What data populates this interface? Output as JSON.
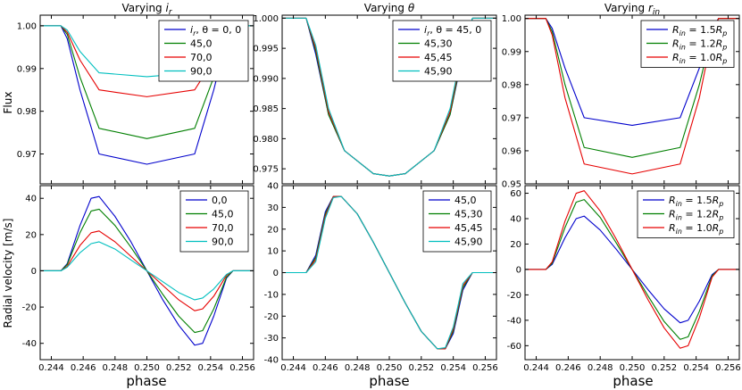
{
  "figure": {
    "ylabel_top": "Flux",
    "ylabel_bottom": "Radial velocity [m/s]",
    "xlabel": "phase"
  },
  "colors": [
    "#0000cc",
    "#007f00",
    "#e60000",
    "#00bfbf"
  ],
  "chart_data": [
    {
      "type": "line",
      "title": "Varying $i_r$",
      "title_text": "Varying ",
      "title_sym": "i",
      "title_sub": "r",
      "ylabel": "Flux",
      "xlabel": "",
      "xlim": [
        0.2433,
        0.2567
      ],
      "ylim": [
        0.963,
        1.0025
      ],
      "xticks": [
        0.244,
        0.246,
        0.248,
        0.25,
        0.252,
        0.254,
        0.256
      ],
      "yticks": [
        0.97,
        0.98,
        0.99,
        1.0
      ],
      "xtick_labels_shown": false,
      "legend": "top-right",
      "x": [
        0.2433,
        0.2446,
        0.245,
        0.2458,
        0.247,
        0.25,
        0.253,
        0.2542,
        0.255,
        0.2554,
        0.2567
      ],
      "series": [
        {
          "name": "$i_r,\\theta=0,0$",
          "label": "i_r, θ = 0, 0",
          "values": [
            1.0,
            1.0,
            0.997,
            0.985,
            0.97,
            0.9676,
            0.97,
            0.985,
            0.997,
            1.0,
            1.0
          ]
        },
        {
          "name": "45,0",
          "values": [
            1.0,
            1.0,
            0.998,
            0.988,
            0.976,
            0.9736,
            0.976,
            0.988,
            0.998,
            1.0,
            1.0
          ]
        },
        {
          "name": "70,0",
          "values": [
            1.0,
            1.0,
            0.9985,
            0.992,
            0.985,
            0.9834,
            0.985,
            0.992,
            0.9985,
            1.0,
            1.0
          ]
        },
        {
          "name": "90,0",
          "values": [
            1.0,
            1.0,
            0.999,
            0.994,
            0.989,
            0.9881,
            0.989,
            0.994,
            0.999,
            1.0,
            1.0
          ]
        }
      ]
    },
    {
      "type": "line",
      "title": "Varying $\\theta$",
      "title_text": "Varying ",
      "title_sym": "θ",
      "title_sub": "",
      "ylabel": "",
      "xlabel": "",
      "xlim": [
        0.2433,
        0.2567
      ],
      "ylim": [
        0.9725,
        1.0005
      ],
      "xticks": [
        0.244,
        0.246,
        0.248,
        0.25,
        0.252,
        0.254,
        0.256
      ],
      "yticks": [
        0.975,
        0.98,
        0.985,
        0.99,
        0.995,
        1.0
      ],
      "xtick_labels_shown": false,
      "legend": "top-right",
      "x": [
        0.2433,
        0.2448,
        0.2454,
        0.2462,
        0.2472,
        0.249,
        0.25,
        0.251,
        0.2528,
        0.2538,
        0.2546,
        0.2552,
        0.2567
      ],
      "series": [
        {
          "name": "$i_r,\\theta=45,0$",
          "label": "i_r, θ = 45, 0",
          "values": [
            1.0,
            1.0,
            0.994,
            0.984,
            0.978,
            0.9742,
            0.9738,
            0.9742,
            0.978,
            0.984,
            0.994,
            1.0,
            1.0
          ]
        },
        {
          "name": "45,30",
          "values": [
            1.0,
            1.0,
            0.9945,
            0.984,
            0.978,
            0.9742,
            0.9738,
            0.9742,
            0.978,
            0.984,
            0.9945,
            1.0,
            1.0
          ]
        },
        {
          "name": "45,45",
          "values": [
            1.0,
            1.0,
            0.995,
            0.9845,
            0.978,
            0.9742,
            0.9738,
            0.9742,
            0.978,
            0.9845,
            0.995,
            1.0,
            1.0
          ]
        },
        {
          "name": "45,90",
          "values": [
            1.0,
            1.0,
            0.9955,
            0.985,
            0.978,
            0.9742,
            0.9738,
            0.9742,
            0.978,
            0.985,
            0.9955,
            1.0,
            1.0
          ]
        }
      ]
    },
    {
      "type": "line",
      "title": "Varying $r_{in}$",
      "title_text": "Varying ",
      "title_sym": "r",
      "title_sub": "in",
      "ylabel": "",
      "xlabel": "",
      "xlim": [
        0.2433,
        0.2567
      ],
      "ylim": [
        0.95,
        1.001
      ],
      "xticks": [
        0.244,
        0.246,
        0.248,
        0.25,
        0.252,
        0.254,
        0.256
      ],
      "yticks": [
        0.95,
        0.96,
        0.97,
        0.98,
        0.99,
        1.0
      ],
      "xtick_labels_shown": false,
      "legend": "top-right",
      "x": [
        0.2433,
        0.2446,
        0.245,
        0.2458,
        0.247,
        0.25,
        0.253,
        0.2542,
        0.255,
        0.2554,
        0.2567
      ],
      "series": [
        {
          "name": "$R_{in}=1.5R_p$",
          "label": "R_in = 1.5R_p",
          "values": [
            1.0,
            1.0,
            0.997,
            0.985,
            0.97,
            0.9677,
            0.97,
            0.985,
            0.997,
            1.0,
            1.0
          ]
        },
        {
          "name": "$R_{in}=1.2R_p$",
          "label": "R_in = 1.2R_p",
          "values": [
            1.0,
            1.0,
            0.996,
            0.98,
            0.961,
            0.958,
            0.961,
            0.98,
            0.996,
            1.0,
            1.0
          ]
        },
        {
          "name": "$R_{in}=1.0R_p$",
          "label": "R_in = 1.0R_p",
          "values": [
            1.0,
            1.0,
            0.995,
            0.976,
            0.956,
            0.953,
            0.956,
            0.976,
            0.995,
            1.0,
            1.0
          ]
        }
      ]
    },
    {
      "type": "line",
      "title": "",
      "ylabel": "Radial velocity [m/s]",
      "xlabel": "phase",
      "xlim": [
        0.2433,
        0.2567
      ],
      "ylim": [
        -49,
        47
      ],
      "xticks": [
        0.244,
        0.246,
        0.248,
        0.25,
        0.252,
        0.254,
        0.256
      ],
      "yticks": [
        -40,
        -20,
        0,
        20,
        40
      ],
      "xtick_labels_shown": true,
      "legend": "top-right",
      "x": [
        0.2433,
        0.2446,
        0.245,
        0.2458,
        0.2465,
        0.247,
        0.248,
        0.249,
        0.25,
        0.251,
        0.252,
        0.253,
        0.2535,
        0.2542,
        0.255,
        0.2554,
        0.2567
      ],
      "series": [
        {
          "name": "0,0",
          "values": [
            0,
            0,
            4,
            25,
            40,
            41,
            30,
            16,
            0,
            -16,
            -30,
            -41,
            -40,
            -25,
            -4,
            0,
            0
          ]
        },
        {
          "name": "45,0",
          "values": [
            0,
            0,
            3.5,
            21,
            33,
            34,
            25,
            13,
            0,
            -13,
            -25,
            -34,
            -33,
            -21,
            -3.5,
            0,
            0
          ]
        },
        {
          "name": "70,0",
          "values": [
            0,
            0,
            2.5,
            14,
            21,
            22,
            16,
            8,
            0,
            -8,
            -16,
            -22,
            -21,
            -14,
            -2.5,
            0,
            0
          ]
        },
        {
          "name": "90,0",
          "values": [
            0,
            0,
            2,
            10,
            15,
            16,
            12,
            6,
            0,
            -6,
            -12,
            -16,
            -15,
            -10,
            -2,
            0,
            0
          ]
        }
      ]
    },
    {
      "type": "line",
      "title": "",
      "ylabel": "",
      "xlabel": "phase",
      "xlim": [
        0.2433,
        0.2567
      ],
      "ylim": [
        -40,
        40
      ],
      "xticks": [
        0.244,
        0.246,
        0.248,
        0.25,
        0.252,
        0.254,
        0.256
      ],
      "yticks": [
        -40,
        -30,
        -20,
        -10,
        0,
        10,
        20,
        30,
        40
      ],
      "xtick_labels_shown": true,
      "legend": "top-right",
      "x": [
        0.2433,
        0.2448,
        0.2454,
        0.246,
        0.2465,
        0.247,
        0.248,
        0.249,
        0.25,
        0.251,
        0.252,
        0.253,
        0.2535,
        0.254,
        0.2546,
        0.2552,
        0.2567
      ],
      "series": [
        {
          "name": "45,0",
          "values": [
            0,
            0,
            8,
            28,
            35,
            35,
            27,
            14,
            0,
            -14,
            -27,
            -35,
            -35,
            -28,
            -8,
            0,
            0
          ]
        },
        {
          "name": "45,30",
          "values": [
            0,
            0,
            7,
            27,
            35,
            35,
            27,
            14,
            0,
            -14,
            -27,
            -35,
            -35,
            -27,
            -7,
            0,
            0
          ]
        },
        {
          "name": "45,45",
          "values": [
            0,
            0,
            6,
            26,
            35,
            35,
            27,
            14,
            0,
            -14,
            -27,
            -35,
            -35,
            -26,
            -6,
            0,
            0
          ]
        },
        {
          "name": "45,90",
          "values": [
            0,
            0,
            5,
            25,
            34.5,
            35,
            27,
            14,
            0,
            -14,
            -27,
            -35,
            -34.5,
            -25,
            -5,
            0,
            0
          ]
        }
      ]
    },
    {
      "type": "line",
      "title": "",
      "ylabel": "",
      "xlabel": "phase",
      "xlim": [
        0.2433,
        0.2567
      ],
      "ylim": [
        -71,
        66
      ],
      "xticks": [
        0.244,
        0.246,
        0.248,
        0.25,
        0.252,
        0.254,
        0.256
      ],
      "yticks": [
        -60,
        -40,
        -20,
        0,
        20,
        40,
        60
      ],
      "xtick_labels_shown": true,
      "legend": "top-right",
      "x": [
        0.2433,
        0.2446,
        0.245,
        0.2458,
        0.2465,
        0.247,
        0.248,
        0.249,
        0.25,
        0.251,
        0.252,
        0.253,
        0.2535,
        0.2542,
        0.255,
        0.2554,
        0.2567
      ],
      "series": [
        {
          "name": "$R_{in}=1.5R_p$",
          "label": "R_in = 1.5R_p",
          "values": [
            0,
            0,
            4,
            25,
            40,
            42,
            31,
            16,
            0,
            -16,
            -31,
            -42,
            -40,
            -25,
            -4,
            0,
            0
          ]
        },
        {
          "name": "$R_{in}=1.2R_p$",
          "label": "R_in = 1.2R_p",
          "values": [
            0,
            0,
            5,
            33,
            53,
            55,
            41,
            21,
            0,
            -21,
            -41,
            -55,
            -53,
            -33,
            -5,
            0,
            0
          ]
        },
        {
          "name": "$R_{in}=1.0R_p$",
          "label": "R_in = 1.0R_p",
          "values": [
            0,
            0,
            6,
            38,
            60,
            62,
            46,
            24,
            0,
            -24,
            -46,
            -62,
            -60,
            -38,
            -6,
            0,
            0
          ]
        }
      ]
    }
  ]
}
